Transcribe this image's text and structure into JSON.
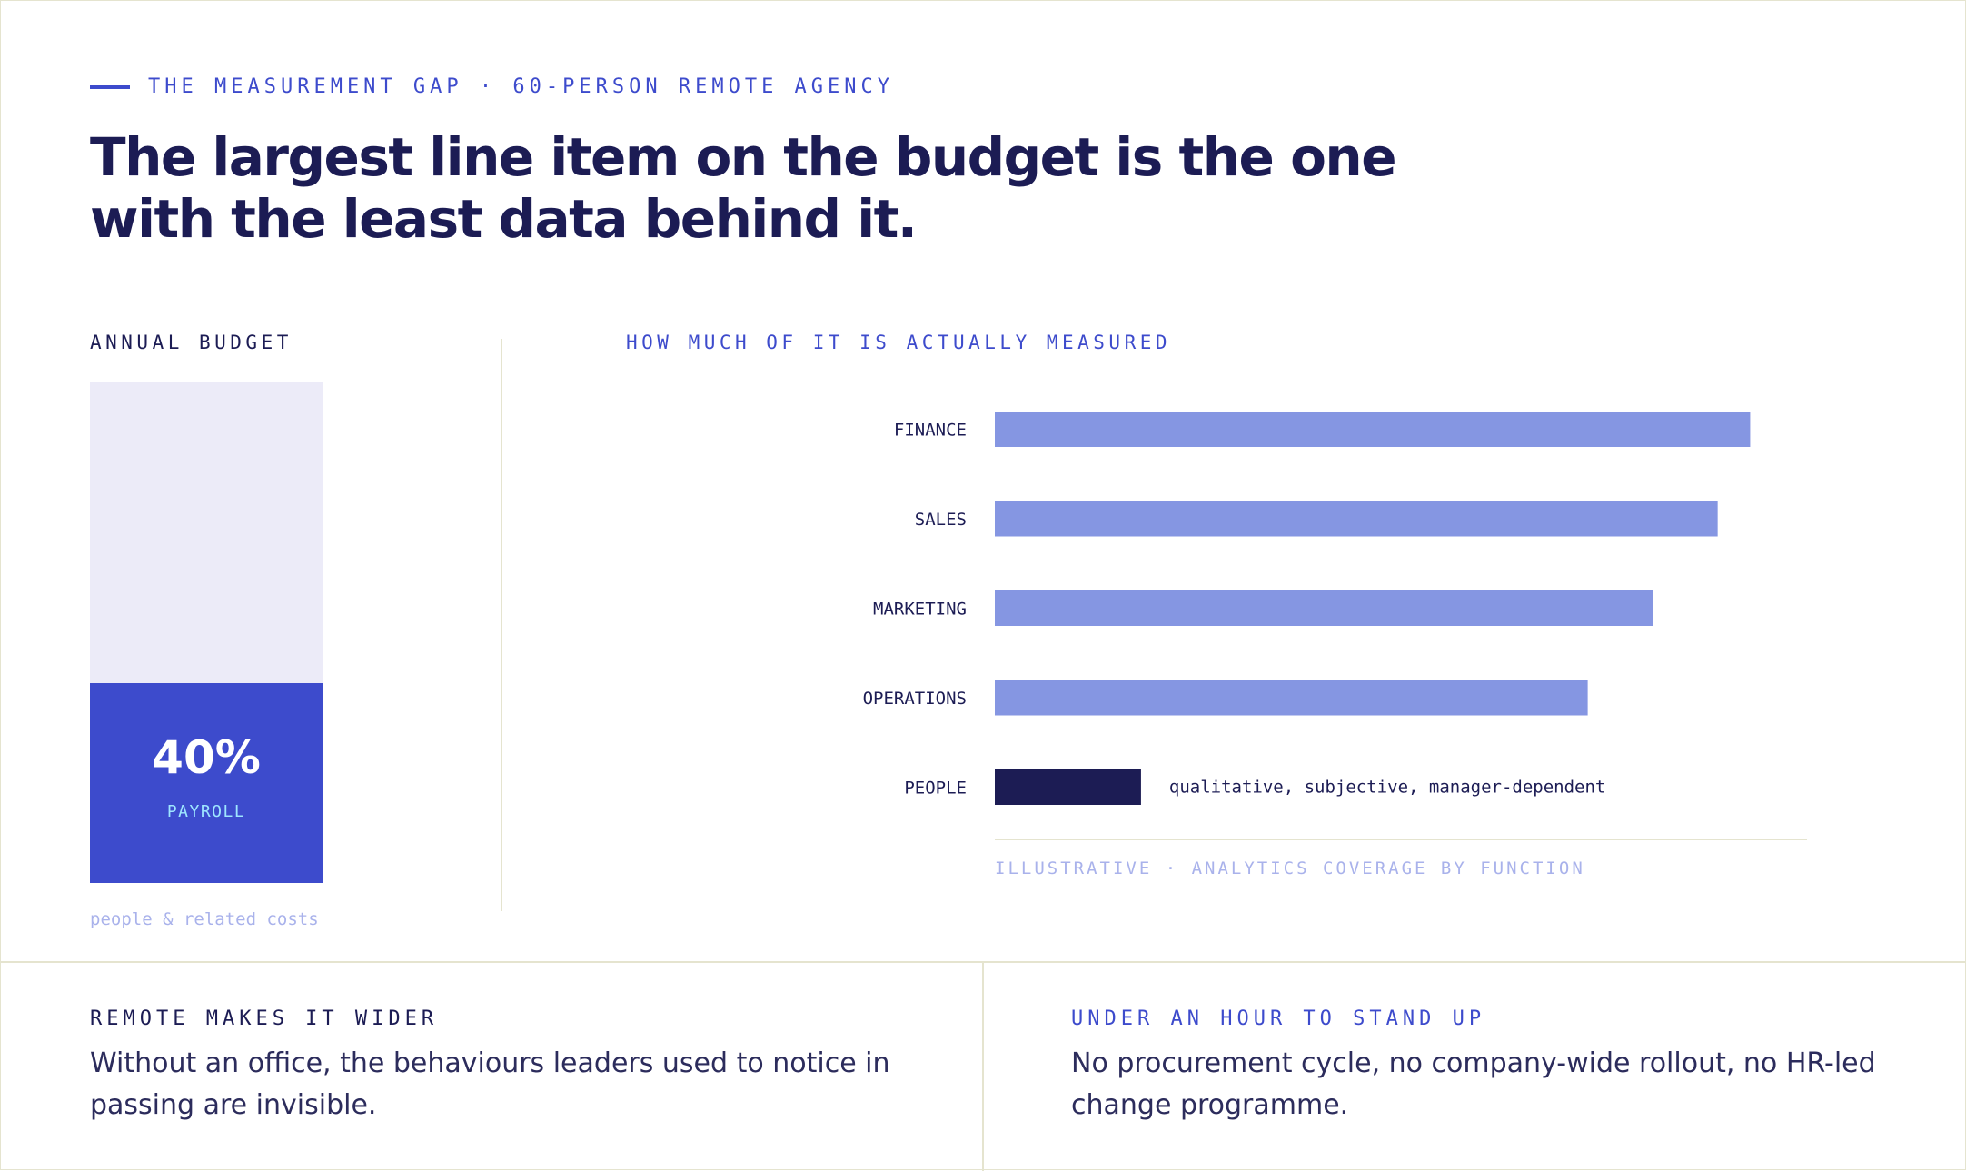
{
  "eyebrow": "THE MEASUREMENT GAP · 60-PERSON REMOTE AGENCY",
  "headline": "The largest line item on the budget is the one with the least data behind it.",
  "budget": {
    "label": "ANNUAL BUDGET",
    "payroll_share": 0.4,
    "payroll_pct_text": "40%",
    "payroll_label": "PAYROLL",
    "note": "people & related costs"
  },
  "chart_data": {
    "type": "bar",
    "orientation": "horizontal",
    "title": "HOW MUCH OF IT IS ACTUALLY MEASURED",
    "categories": [
      "FINANCE",
      "SALES",
      "MARKETING",
      "OPERATIONS",
      "PEOPLE"
    ],
    "values": [
      93,
      89,
      81,
      73,
      18
    ],
    "xlim": [
      0,
      100
    ],
    "grid": false,
    "annotations": [
      {
        "category": "PEOPLE",
        "text": "qualitative, subjective, manager-dependent"
      }
    ],
    "footnote": "ILLUSTRATIVE · ANALYTICS COVERAGE BY FUNCTION",
    "colors": {
      "default": "#8596e2",
      "highlight": "#1c1c54"
    },
    "highlight": "PEOPLE"
  },
  "panels": [
    {
      "title": "REMOTE MAKES IT WIDER",
      "body": "Without an office, the behaviours leaders used to notice in passing are invisible."
    },
    {
      "title": "UNDER AN HOUR TO STAND UP",
      "body": "No procurement cycle, no company-wide rollout, no HR-led change programme."
    }
  ],
  "colors": {
    "accent": "#3d4bcc",
    "navy": "#1c1c54",
    "bar": "#8596e2",
    "muted": "#a9b2eb",
    "budget_bg": "#ecebf8",
    "rule": "#e5e4cf"
  }
}
